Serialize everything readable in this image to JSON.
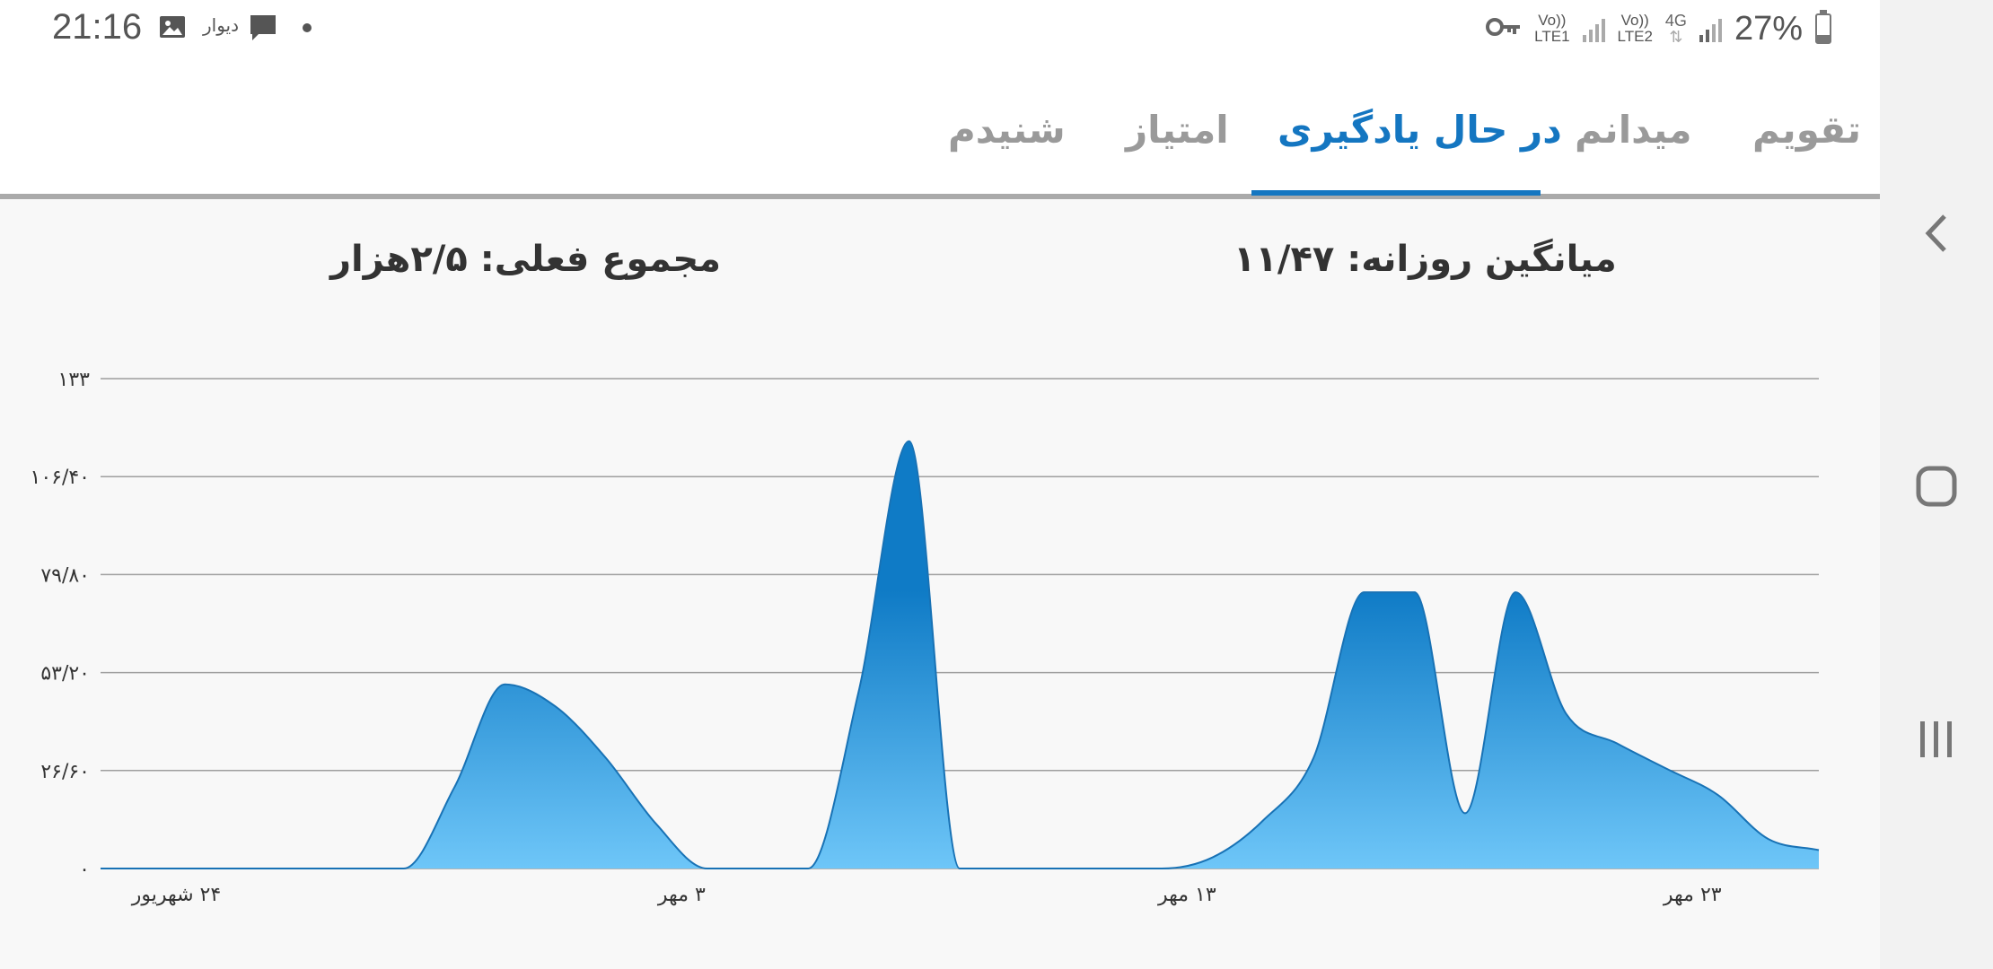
{
  "status_bar": {
    "time": "21:16",
    "left_icons": [
      "image-icon",
      "divar-icon",
      "message-icon",
      "dot-icon"
    ],
    "divar_label": "دیوار",
    "sim1_top": "Vo))",
    "sim1_bottom": "LTE1",
    "sim2_top": "Vo))",
    "sim2_bottom": "LTE2",
    "network_type": "4G",
    "battery_percent": "27%",
    "battery_level": 0.27,
    "right_icons": [
      "vpn-key-icon",
      "signal-icon",
      "battery-icon"
    ]
  },
  "tabs": {
    "items": [
      {
        "label": "تقویم"
      },
      {
        "label": "میدانم"
      },
      {
        "label": "در حال یادگیری"
      },
      {
        "label": "امتیاز"
      },
      {
        "label": "شنیدم"
      }
    ],
    "active_index": 2
  },
  "stats": {
    "daily_average": "میانگین روزانه: ۱۱/۴۷",
    "current_total": "مجموع فعلی: ۲/۵هزار"
  },
  "chart_data": {
    "type": "area",
    "ylim": [
      0,
      133
    ],
    "yticks": [
      0,
      26.6,
      53.2,
      79.8,
      106.4,
      133
    ],
    "ytick_labels": [
      "۰",
      "۲۶/۶۰",
      "۵۳/۲۰",
      "۷۹/۸۰",
      "۱۰۶/۴۰",
      "۱۳۳"
    ],
    "xlim": [
      0,
      34
    ],
    "xticks": [
      1.5,
      11.5,
      21.5,
      31.5
    ],
    "xtick_labels": [
      "۲۴ شهریور",
      "۳ مهر",
      "۱۳ مهر",
      "۲۳ مهر"
    ],
    "x": [
      0,
      1,
      2,
      3,
      4,
      5,
      6,
      7,
      8,
      9,
      10,
      11,
      12,
      13,
      14,
      15,
      16,
      17,
      18,
      19,
      20,
      21,
      22,
      23,
      24,
      25,
      26,
      27,
      28,
      29,
      30,
      31,
      32,
      33,
      34
    ],
    "values": [
      0,
      0,
      0,
      0,
      0,
      0,
      0,
      22,
      50,
      44,
      30,
      12,
      0,
      0,
      0,
      48,
      116,
      0,
      0,
      0,
      0,
      0,
      3,
      13,
      30,
      75,
      75,
      15,
      75,
      42,
      34,
      27,
      20,
      8,
      5
    ],
    "fill_top_color": "#0f7bc6",
    "fill_bottom_color": "#6ec6f8",
    "line_color": "#1872b5",
    "grid": true
  },
  "nav_bar": {
    "icons": [
      "back-chevron-icon",
      "home-icon",
      "recents-icon"
    ]
  }
}
